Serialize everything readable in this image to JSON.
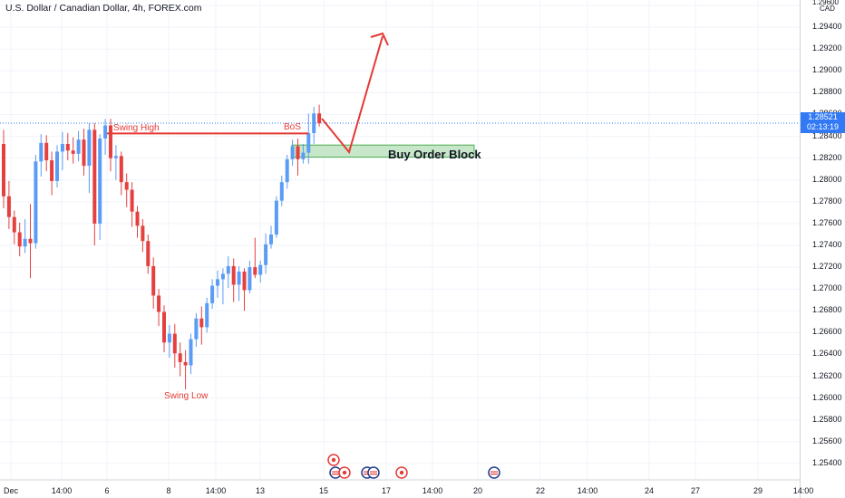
{
  "title": "U.S. Dollar / Canadian Dollar, 4h, FOREX.com",
  "currency_label": "CAD",
  "y_ticks": [
    "1.29600",
    "1.29400",
    "1.29200",
    "1.29000",
    "1.28800",
    "1.28600",
    "1.28400",
    "1.28200",
    "1.28000",
    "1.27800",
    "1.27600",
    "1.27400",
    "1.27200",
    "1.27000",
    "1.26800",
    "1.26600",
    "1.26400",
    "1.26200",
    "1.26000",
    "1.25800",
    "1.25600",
    "1.25400"
  ],
  "x_ticks": [
    "Dec",
    "14:00",
    "6",
    "8",
    "14:00",
    "13",
    "15",
    "17",
    "14:00",
    "20",
    "22",
    "14:00",
    "24",
    "27",
    "29",
    "14:00"
  ],
  "current_price": {
    "value": "1.28521",
    "countdown": "02:13:19"
  },
  "colors": {
    "up": "#5b9cf6",
    "down": "#e54040",
    "annotation_red": "#e53935",
    "order_block_fill": "#c8e6c9",
    "order_block_border": "#4caf50",
    "price_tag": "#3179f5"
  },
  "annotations": {
    "swing_high": "Swing High",
    "bos": "BoS",
    "swing_low": "Swing Low",
    "buy_order_block": "Buy Order Block"
  },
  "event_icons": [
    "canada-flag-icon",
    "us-flag-icon",
    "canada-flag-icon",
    "us-flag-icon",
    "us-flag-icon",
    "canada-flag-icon",
    "us-flag-icon"
  ],
  "chart_data": {
    "type": "candlestick",
    "title": "U.S. Dollar / Canadian Dollar, 4h, FOREX.com",
    "ylim": [
      1.2525,
      1.2965
    ],
    "grid": true,
    "series": [
      {
        "candles": [
          [
            1.2833,
            1.2846,
            1.2774,
            1.2785
          ],
          [
            1.2785,
            1.2799,
            1.2755,
            1.2766
          ],
          [
            1.2766,
            1.2772,
            1.2741,
            1.2752
          ],
          [
            1.2752,
            1.2761,
            1.273,
            1.2739
          ],
          [
            1.2739,
            1.2764,
            1.2733,
            1.2746
          ],
          [
            1.2746,
            1.2778,
            1.271,
            1.2742
          ],
          [
            1.2742,
            1.2823,
            1.2737,
            1.2817
          ],
          [
            1.2817,
            1.2842,
            1.2803,
            1.2834
          ],
          [
            1.2834,
            1.2841,
            1.2808,
            1.2818
          ],
          [
            1.2818,
            1.2826,
            1.2786,
            1.2799
          ],
          [
            1.2799,
            1.2832,
            1.2793,
            1.2826
          ],
          [
            1.2826,
            1.2844,
            1.2809,
            1.2833
          ],
          [
            1.2833,
            1.2843,
            1.2818,
            1.2827
          ],
          [
            1.2827,
            1.2839,
            1.2815,
            1.2824
          ],
          [
            1.2824,
            1.2845,
            1.2817,
            1.2837
          ],
          [
            1.2837,
            1.2847,
            1.2804,
            1.2813
          ],
          [
            1.2813,
            1.2852,
            1.2788,
            1.2846
          ],
          [
            1.2846,
            1.2852,
            1.274,
            1.276
          ],
          [
            1.276,
            1.2842,
            1.2745,
            1.2838
          ],
          [
            1.2838,
            1.2856,
            1.2823,
            1.285
          ],
          [
            1.285,
            1.2856,
            1.2808,
            1.282
          ],
          [
            1.282,
            1.2832,
            1.28,
            1.2822
          ],
          [
            1.2822,
            1.2826,
            1.2786,
            1.2798
          ],
          [
            1.2798,
            1.2806,
            1.2775,
            1.2791
          ],
          [
            1.2791,
            1.2798,
            1.2757,
            1.2771
          ],
          [
            1.2771,
            1.2776,
            1.2747,
            1.2758
          ],
          [
            1.2758,
            1.2764,
            1.2734,
            1.2744
          ],
          [
            1.2744,
            1.275,
            1.2714,
            1.2721
          ],
          [
            1.2721,
            1.2729,
            1.2682,
            1.2694
          ],
          [
            1.2694,
            1.27,
            1.2666,
            1.2679
          ],
          [
            1.2679,
            1.2685,
            1.2642,
            1.2651
          ],
          [
            1.2651,
            1.2667,
            1.2637,
            1.2659
          ],
          [
            1.2659,
            1.2668,
            1.2628,
            1.2641
          ],
          [
            1.2641,
            1.2651,
            1.262,
            1.2633
          ],
          [
            1.2633,
            1.2644,
            1.2608,
            1.263
          ],
          [
            1.263,
            1.2659,
            1.2622,
            1.2654
          ],
          [
            1.2654,
            1.2678,
            1.2647,
            1.2673
          ],
          [
            1.2673,
            1.2684,
            1.2649,
            1.2665
          ],
          [
            1.2665,
            1.2692,
            1.266,
            1.2687
          ],
          [
            1.2687,
            1.2709,
            1.2682,
            1.2703
          ],
          [
            1.2703,
            1.2717,
            1.2692,
            1.2709
          ],
          [
            1.2709,
            1.2719,
            1.2686,
            1.2714
          ],
          [
            1.2714,
            1.273,
            1.2701,
            1.2721
          ],
          [
            1.2721,
            1.2728,
            1.2688,
            1.2704
          ],
          [
            1.2704,
            1.2721,
            1.2689,
            1.2716
          ],
          [
            1.2716,
            1.2719,
            1.268,
            1.2699
          ],
          [
            1.2699,
            1.2726,
            1.2696,
            1.272
          ],
          [
            1.272,
            1.2747,
            1.271,
            1.2713
          ],
          [
            1.2713,
            1.2726,
            1.2706,
            1.2722
          ],
          [
            1.2722,
            1.2751,
            1.2714,
            1.2741
          ],
          [
            1.2741,
            1.2758,
            1.2737,
            1.275
          ],
          [
            1.275,
            1.2785,
            1.2747,
            1.2781
          ],
          [
            1.2781,
            1.2804,
            1.2776,
            1.2798
          ],
          [
            1.2798,
            1.2823,
            1.2792,
            1.2819
          ],
          [
            1.2819,
            1.2837,
            1.2813,
            1.2831
          ],
          [
            1.2831,
            1.2838,
            1.2804,
            1.2819
          ],
          [
            1.2819,
            1.2833,
            1.2815,
            1.2825
          ],
          [
            1.2825,
            1.2861,
            1.2815,
            1.2843
          ],
          [
            1.2843,
            1.2867,
            1.2833,
            1.2861
          ],
          [
            1.2861,
            1.2869,
            1.2849,
            1.2852
          ]
        ]
      }
    ]
  }
}
